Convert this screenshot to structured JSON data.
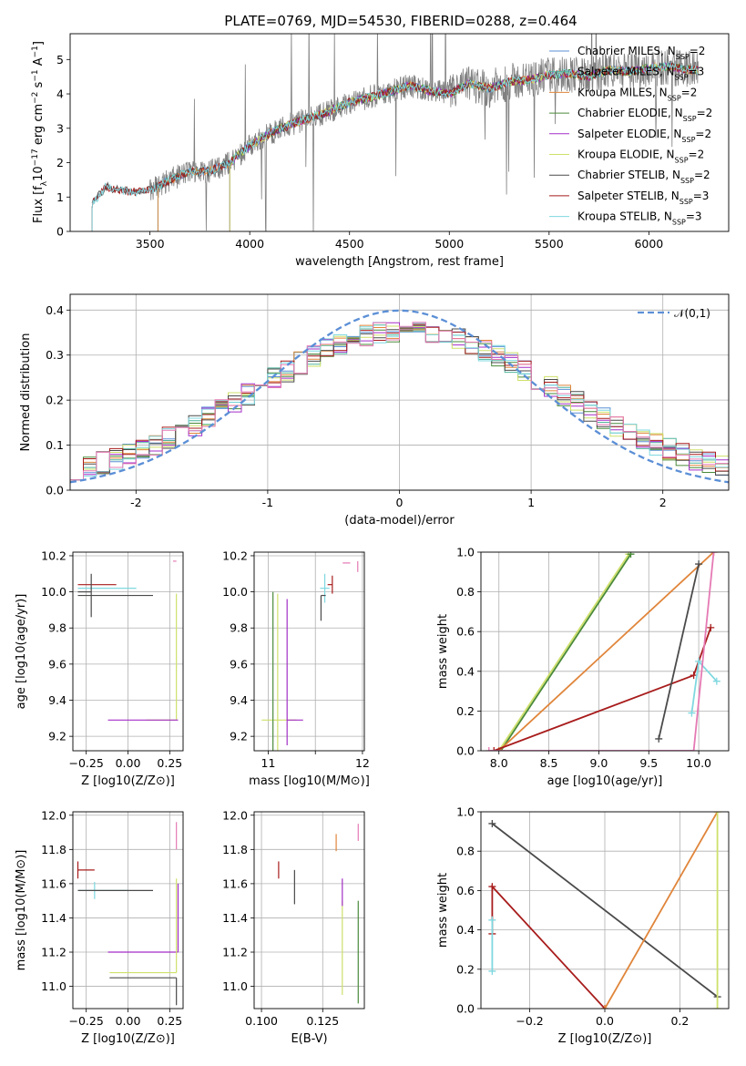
{
  "figure_title": "PLATE=0769, MJD=54530, FIBERID=0288, z=0.464",
  "colors": {
    "chabrier_miles": "#5b8fd6",
    "salpeter_miles": "#4fb39c",
    "kroupa_miles": "#e0853a",
    "chabrier_elodie": "#4a8a3a",
    "salpeter_elodie": "#a32fc7",
    "kroupa_elodie": "#cfe06a",
    "chabrier_stelib": "#4a4a4a",
    "salpeter_stelib": "#a81c1c",
    "kroupa_stelib": "#7fd8e0",
    "pink": "#e57ab4",
    "data": "#808080",
    "gaussian": "#5b8fd6"
  },
  "chart_data": [
    {
      "id": "spectrum",
      "type": "line",
      "xlabel": "wavelength [Angstrom, rest frame]",
      "ylabel": "Flux [f_λ10^-17 erg cm^-2 s^-1 A^-1]",
      "xlim": [
        3100,
        6400
      ],
      "ylim": [
        0,
        5.75
      ],
      "xticks": [
        3500,
        4000,
        4500,
        5000,
        5500,
        6000
      ],
      "yticks": [
        0,
        1,
        2,
        3,
        4,
        5
      ],
      "legend_position": "top-right",
      "legend": [
        {
          "label": "Chabrier MILES, N",
          "sub": "SSP",
          "tail": "=2",
          "color_key": "chabrier_miles"
        },
        {
          "label": "Salpeter MILES, N",
          "sub": "SSP",
          "tail": "=3",
          "color_key": "salpeter_miles"
        },
        {
          "label": "Kroupa MILES, N",
          "sub": "SSP",
          "tail": "=2",
          "color_key": "kroupa_miles"
        },
        {
          "label": "Chabrier ELODIE, N",
          "sub": "SSP",
          "tail": "=2",
          "color_key": "chabrier_elodie"
        },
        {
          "label": "Salpeter ELODIE, N",
          "sub": "SSP",
          "tail": "=2",
          "color_key": "salpeter_elodie"
        },
        {
          "label": "Kroupa ELODIE, N",
          "sub": "SSP",
          "tail": "=2",
          "color_key": "kroupa_elodie"
        },
        {
          "label": "Chabrier STELIB, N",
          "sub": "SSP",
          "tail": "=2",
          "color_key": "chabrier_stelib"
        },
        {
          "label": "Salpeter STELIB, N",
          "sub": "SSP",
          "tail": "=3",
          "color_key": "salpeter_stelib"
        },
        {
          "label": "Kroupa STELIB, N",
          "sub": "SSP",
          "tail": "=3",
          "color_key": "kroupa_stelib"
        }
      ],
      "continuum": {
        "x": [
          3210,
          3280,
          3350,
          3420,
          3500,
          3600,
          3700,
          3800,
          3900,
          4000,
          4100,
          4200,
          4300,
          4400,
          4500,
          4600,
          4700,
          4800,
          4900,
          5000,
          5100,
          5200,
          5300,
          5400,
          5500,
          5600,
          5700,
          5800,
          5900,
          6000,
          6100,
          6200
        ],
        "y": [
          0.8,
          1.3,
          1.2,
          1.15,
          1.2,
          1.5,
          1.75,
          1.75,
          2.0,
          2.5,
          2.85,
          3.1,
          3.3,
          3.5,
          3.75,
          3.9,
          4.05,
          4.25,
          4.1,
          4.0,
          4.3,
          4.15,
          4.35,
          4.4,
          4.55,
          4.6,
          4.5,
          4.7,
          4.65,
          4.75,
          4.8,
          4.7
        ]
      },
      "model_starts": {
        "chabrier_miles": 3540,
        "salpeter_miles": 3540,
        "kroupa_miles": 3540,
        "chabrier_elodie": 3900,
        "salpeter_elodie": 3900,
        "kroupa_elodie": 3900,
        "chabrier_stelib": 3210,
        "salpeter_stelib": 3210,
        "kroupa_stelib": 3210
      }
    },
    {
      "id": "residuals",
      "type": "bar",
      "xlabel": "(data-model)/error",
      "ylabel": "Normed distribution",
      "xlim": [
        -2.5,
        2.5
      ],
      "ylim": [
        0,
        0.435
      ],
      "xticks": [
        -2,
        -1,
        0,
        1,
        2
      ],
      "yticks": [
        0.0,
        0.1,
        0.2,
        0.3,
        0.4
      ],
      "legend_label": "𝒩(0,1)",
      "legend_position": "top-right",
      "bin_width": 0.1,
      "bin_start": -2.5
    },
    {
      "id": "age_vs_z",
      "type": "scatter",
      "xlabel": "Z [log10(Z/Z⊙)]",
      "ylabel": "age  [log10(age/yr)]",
      "xlim": [
        -0.33,
        0.33
      ],
      "ylim": [
        9.12,
        10.22
      ],
      "xticks": [
        -0.25,
        0.0,
        0.25
      ],
      "xtick_labels": [
        "−0.25",
        "0.00",
        "0.25"
      ],
      "yticks": [
        9.2,
        9.4,
        9.6,
        9.8,
        10.0,
        10.2
      ],
      "points": [
        {
          "x": -0.15,
          "y": 10.04,
          "xerr": [
            0.15,
            0.08
          ],
          "yerr": [
            0.0,
            0.0
          ],
          "color_key": "salpeter_stelib"
        },
        {
          "x": -0.15,
          "y": 10.02,
          "xerr": [
            0.15,
            0.2
          ],
          "yerr": [
            0.0,
            0.0
          ],
          "color_key": "kroupa_stelib"
        },
        {
          "x": -0.22,
          "y": 10.0,
          "xerr": [
            0.08,
            0.0
          ],
          "yerr": [
            0.14,
            0.1
          ],
          "color_key": "chabrier_stelib"
        },
        {
          "x": -0.05,
          "y": 9.98,
          "xerr": [
            0.25,
            0.2
          ],
          "yerr": [
            0.0,
            0.0
          ],
          "color_key": "chabrier_stelib"
        },
        {
          "x": 0.29,
          "y": 9.29,
          "xerr": [
            0.18,
            0.0
          ],
          "yerr": [
            0.0,
            0.7
          ],
          "color_key": "kroupa_elodie"
        },
        {
          "x": 0.3,
          "y": 9.29,
          "xerr": [
            0.42,
            0.0
          ],
          "yerr": [
            0.0,
            0.0
          ],
          "color_key": "salpeter_elodie"
        },
        {
          "x": 0.29,
          "y": 10.17,
          "xerr": [
            0.02,
            0.0
          ],
          "yerr": [
            0.0,
            0.0
          ],
          "color_key": "pink"
        }
      ]
    },
    {
      "id": "age_vs_mass",
      "type": "scatter",
      "xlabel": "mass [log10(M/M⊙)]",
      "ylabel": "",
      "xlim": [
        10.85,
        12.02
      ],
      "ylim": [
        9.12,
        10.22
      ],
      "xticks": [
        11,
        11.5,
        12
      ],
      "xtick_labels": [
        "11",
        "",
        "12"
      ],
      "yticks": [
        9.2,
        9.4,
        9.6,
        9.8,
        10.0,
        10.2
      ],
      "points": [
        {
          "x": 11.68,
          "y": 10.04,
          "xerr": [
            0.05,
            0.0
          ],
          "yerr": [
            0.05,
            0.05
          ],
          "color_key": "salpeter_stelib"
        },
        {
          "x": 11.6,
          "y": 10.02,
          "xerr": [
            0.05,
            0.05
          ],
          "yerr": [
            0.08,
            0.08
          ],
          "color_key": "kroupa_stelib"
        },
        {
          "x": 11.56,
          "y": 9.98,
          "xerr": [
            0.0,
            0.05
          ],
          "yerr": [
            0.14,
            0.0
          ],
          "color_key": "chabrier_stelib"
        },
        {
          "x": 11.1,
          "y": 9.29,
          "xerr": [
            0.17,
            0.2
          ],
          "yerr": [
            0.25,
            0.7
          ],
          "color_key": "kroupa_elodie"
        },
        {
          "x": 11.2,
          "y": 9.29,
          "xerr": [
            0.0,
            0.17
          ],
          "yerr": [
            0.14,
            0.67
          ],
          "color_key": "salpeter_elodie"
        },
        {
          "x": 11.05,
          "y": 9.4,
          "xerr": [
            0.0,
            0.0
          ],
          "yerr": [
            0.3,
            0.6
          ],
          "color_key": "chabrier_elodie"
        },
        {
          "x": 11.87,
          "y": 10.16,
          "xerr": [
            0.08,
            0.0
          ],
          "yerr": [
            0.0,
            0.0
          ],
          "color_key": "pink"
        },
        {
          "x": 11.95,
          "y": 10.17,
          "xerr": [
            0.0,
            0.0
          ],
          "yerr": [
            0.06,
            0.0
          ],
          "color_key": "pink"
        }
      ]
    },
    {
      "id": "weight_vs_age",
      "type": "line",
      "xlabel": "age  [log10(age/yr)]",
      "ylabel": "mass weight",
      "xlim": [
        7.82,
        10.3
      ],
      "ylim": [
        0,
        1.0
      ],
      "xticks": [
        8.0,
        8.5,
        9.0,
        9.5,
        10.0
      ],
      "yticks": [
        0.0,
        0.2,
        0.4,
        0.6,
        0.8,
        1.0
      ],
      "series": [
        {
          "color_key": "kroupa_elodie",
          "x": [
            8.0,
            9.3
          ],
          "y": [
            0.0,
            0.99
          ]
        },
        {
          "color_key": "chabrier_elodie",
          "x": [
            8.02,
            9.32
          ],
          "y": [
            0.0,
            0.99
          ]
        },
        {
          "color_key": "kroupa_miles",
          "x": [
            8.0,
            10.15
          ],
          "y": [
            0.0,
            1.0
          ]
        },
        {
          "color_key": "salpeter_stelib",
          "x": [
            7.95,
            9.95,
            10.12
          ],
          "y": [
            0.0,
            0.38,
            0.62
          ]
        },
        {
          "color_key": "chabrier_stelib",
          "x": [
            9.6,
            10.0
          ],
          "y": [
            0.06,
            0.94
          ]
        },
        {
          "color_key": "kroupa_stelib",
          "x": [
            9.93,
            10.0,
            10.18
          ],
          "y": [
            0.19,
            0.45,
            0.35
          ]
        },
        {
          "color_key": "pink",
          "x": [
            7.9,
            9.95,
            10.15
          ],
          "y": [
            0.0,
            0.0,
            1.0
          ]
        }
      ]
    },
    {
      "id": "mass_vs_z",
      "type": "scatter",
      "xlabel": "Z [log10(Z/Z⊙)]",
      "ylabel": "mass [log10(M/M⊙)]",
      "xlim": [
        -0.33,
        0.33
      ],
      "ylim": [
        10.87,
        12.02
      ],
      "xticks": [
        -0.25,
        0.0,
        0.25
      ],
      "xtick_labels": [
        "−0.25",
        "0.00",
        "0.25"
      ],
      "yticks": [
        11.0,
        11.2,
        11.4,
        11.6,
        11.8,
        12.0
      ],
      "points": [
        {
          "x": -0.3,
          "y": 11.68,
          "xerr": [
            0.0,
            0.1
          ],
          "yerr": [
            0.05,
            0.05
          ],
          "color_key": "salpeter_stelib"
        },
        {
          "x": -0.2,
          "y": 11.56,
          "xerr": [
            0.1,
            0.2
          ],
          "yerr": [
            0.05,
            0.05
          ],
          "color_key": "kroupa_stelib"
        },
        {
          "x": -0.05,
          "y": 11.56,
          "xerr": [
            0.25,
            0.2
          ],
          "yerr": [
            0.0,
            0.0
          ],
          "color_key": "chabrier_stelib"
        },
        {
          "x": 0.3,
          "y": 11.2,
          "xerr": [
            0.42,
            0.0
          ],
          "yerr": [
            0.0,
            0.4
          ],
          "color_key": "salpeter_elodie"
        },
        {
          "x": 0.29,
          "y": 11.08,
          "xerr": [
            0.4,
            0.0
          ],
          "yerr": [
            0.0,
            0.55
          ],
          "color_key": "kroupa_elodie"
        },
        {
          "x": 0.29,
          "y": 11.05,
          "xerr": [
            0.4,
            0.0
          ],
          "yerr": [
            0.16,
            0.0
          ],
          "color_key": "chabrier_stelib"
        },
        {
          "x": 0.29,
          "y": 11.88,
          "xerr": [
            0.0,
            0.0
          ],
          "yerr": [
            0.08,
            0.08
          ],
          "color_key": "pink"
        }
      ]
    },
    {
      "id": "mass_vs_ebv",
      "type": "scatter",
      "xlabel": "E(B-V)",
      "ylabel": "",
      "xlim": [
        0.097,
        0.142
      ],
      "ylim": [
        10.87,
        12.02
      ],
      "xticks": [
        0.1,
        0.125
      ],
      "xtick_labels": [
        "0.100",
        "0.125"
      ],
      "yticks": [
        11.0,
        11.2,
        11.4,
        11.6,
        11.8,
        12.0
      ],
      "points": [
        {
          "x": 0.107,
          "y": 11.68,
          "yerr": [
            0.05,
            0.05
          ],
          "color_key": "salpeter_stelib"
        },
        {
          "x": 0.1135,
          "y": 11.58,
          "yerr": [
            0.1,
            0.1
          ],
          "color_key": "chabrier_stelib"
        },
        {
          "x": 0.133,
          "y": 11.2,
          "yerr": [
            0.25,
            0.3
          ],
          "color_key": "kroupa_elodie"
        },
        {
          "x": 0.133,
          "y": 11.55,
          "yerr": [
            0.08,
            0.08
          ],
          "color_key": "salpeter_elodie"
        },
        {
          "x": 0.1395,
          "y": 11.2,
          "yerr": [
            0.3,
            0.3
          ],
          "color_key": "chabrier_elodie"
        },
        {
          "x": 0.1305,
          "y": 11.84,
          "yerr": [
            0.05,
            0.05
          ],
          "color_key": "kroupa_miles"
        },
        {
          "x": 0.1395,
          "y": 11.9,
          "yerr": [
            0.05,
            0.05
          ],
          "color_key": "pink"
        }
      ]
    },
    {
      "id": "weight_vs_z",
      "type": "line",
      "xlabel": "Z [log10(Z/Z⊙)]",
      "ylabel": "mass weight",
      "xlim": [
        -0.33,
        0.33
      ],
      "ylim": [
        0,
        1.0
      ],
      "xticks": [
        -0.2,
        0.0,
        0.2
      ],
      "xtick_labels": [
        "−0.2",
        "0.0",
        "0.2"
      ],
      "yticks": [
        0.0,
        0.2,
        0.4,
        0.6,
        0.8,
        1.0
      ],
      "series": [
        {
          "color_key": "chabrier_stelib",
          "x": [
            -0.3,
            0.3
          ],
          "y": [
            0.94,
            0.06
          ]
        },
        {
          "color_key": "salpeter_stelib",
          "x": [
            -0.3,
            -0.3,
            0.0
          ],
          "y": [
            0.38,
            0.62,
            0.0
          ]
        },
        {
          "color_key": "kroupa_miles",
          "x": [
            0.0,
            0.3
          ],
          "y": [
            0.0,
            1.0
          ]
        },
        {
          "color_key": "kroupa_elodie",
          "x": [
            0.3,
            0.3
          ],
          "y": [
            0.0,
            1.0
          ]
        },
        {
          "color_key": "kroupa_stelib",
          "x": [
            -0.3,
            -0.3
          ],
          "y": [
            0.19,
            0.45
          ]
        }
      ]
    }
  ]
}
